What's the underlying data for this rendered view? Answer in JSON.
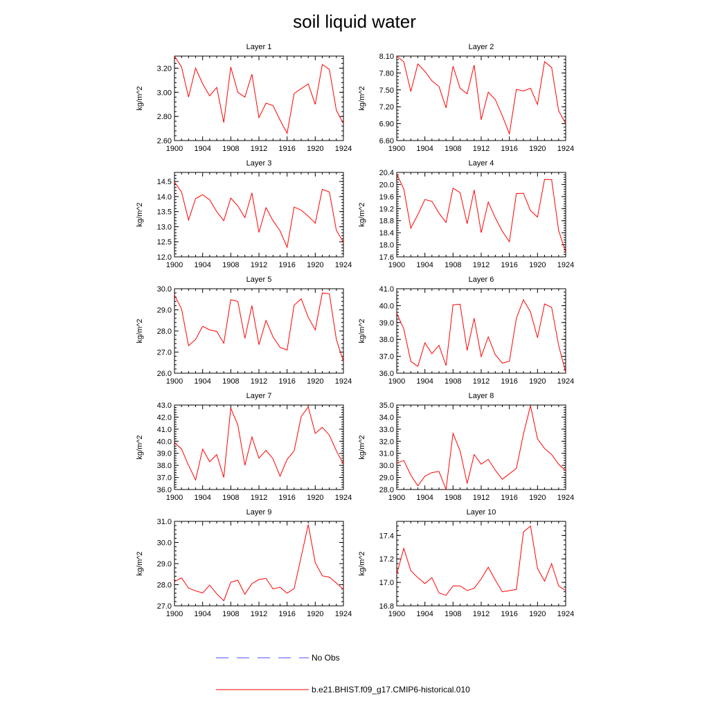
{
  "title": "soil liquid water",
  "colors": {
    "model": "#ff0000",
    "obs": "#4a4aff",
    "axis": "#000000"
  },
  "legend": {
    "entries": [
      {
        "label": "No Obs",
        "style": "dashed",
        "color": "#4a4aff"
      },
      {
        "label": "b.e21.BHIST.f09_g17.CMIP6-historical.010",
        "style": "solid",
        "color": "#ff0000"
      }
    ]
  },
  "chart_data": [
    {
      "type": "line",
      "title": "Layer 1",
      "ylabel": "kg/m^2",
      "ylim": [
        2.6,
        3.3
      ],
      "yticks": [
        "2.60",
        "2.80",
        "3.00",
        "3.20"
      ],
      "xticks": [
        "1900",
        "1904",
        "1908",
        "1912",
        "1916",
        "1920",
        "1924"
      ],
      "xlim": [
        1900,
        1924
      ],
      "series": [
        {
          "x": [
            1900,
            1901,
            1902,
            1903,
            1904,
            1905,
            1906,
            1907,
            1908,
            1909,
            1910,
            1911,
            1912,
            1913,
            1914,
            1915,
            1916,
            1917,
            1918,
            1919,
            1920,
            1921,
            1922,
            1923,
            1924
          ],
          "values": [
            3.3,
            3.21,
            2.96,
            3.2,
            3.07,
            2.97,
            3.04,
            2.75,
            3.21,
            3.0,
            2.96,
            3.15,
            2.79,
            2.91,
            2.89,
            2.77,
            2.66,
            2.99,
            3.03,
            3.07,
            2.9,
            3.23,
            3.19,
            2.85,
            2.74
          ]
        }
      ]
    },
    {
      "type": "line",
      "title": "Layer 2",
      "ylabel": "kg/m^2",
      "ylim": [
        6.6,
        8.1
      ],
      "yticks": [
        "6.60",
        "6.90",
        "7.20",
        "7.50",
        "7.80",
        "8.10"
      ],
      "xticks": [
        "1900",
        "1904",
        "1908",
        "1912",
        "1916",
        "1920",
        "1924"
      ],
      "xlim": [
        1900,
        1924
      ],
      "series": [
        {
          "x": [
            1900,
            1901,
            1902,
            1903,
            1904,
            1905,
            1906,
            1907,
            1908,
            1909,
            1910,
            1911,
            1912,
            1913,
            1914,
            1915,
            1916,
            1917,
            1918,
            1919,
            1920,
            1921,
            1922,
            1923,
            1924
          ],
          "values": [
            8.1,
            8.0,
            7.47,
            7.96,
            7.83,
            7.66,
            7.56,
            7.18,
            7.92,
            7.53,
            7.43,
            7.94,
            6.97,
            7.46,
            7.33,
            7.04,
            6.72,
            7.51,
            7.48,
            7.53,
            7.24,
            8.0,
            7.9,
            7.13,
            6.9
          ]
        }
      ]
    },
    {
      "type": "line",
      "title": "Layer 3",
      "ylabel": "kg/m^2",
      "ylim": [
        12.0,
        14.8
      ],
      "yticks": [
        "12.0",
        "12.5",
        "13.0",
        "13.5",
        "14.0",
        "14.5"
      ],
      "xticks": [
        "1900",
        "1904",
        "1908",
        "1912",
        "1916",
        "1920",
        "1924"
      ],
      "xlim": [
        1900,
        1924
      ],
      "series": [
        {
          "x": [
            1900,
            1901,
            1902,
            1903,
            1904,
            1905,
            1906,
            1907,
            1908,
            1909,
            1910,
            1911,
            1912,
            1913,
            1914,
            1915,
            1916,
            1917,
            1918,
            1919,
            1920,
            1921,
            1922,
            1923,
            1924
          ],
          "values": [
            14.48,
            14.15,
            13.22,
            13.93,
            14.06,
            13.89,
            13.5,
            13.2,
            13.95,
            13.69,
            13.3,
            14.12,
            12.81,
            13.63,
            13.2,
            12.86,
            12.32,
            13.65,
            13.55,
            13.35,
            13.12,
            14.24,
            14.15,
            12.88,
            12.48
          ]
        }
      ]
    },
    {
      "type": "line",
      "title": "Layer 4",
      "ylabel": "kg/m^2",
      "ylim": [
        17.6,
        20.4
      ],
      "yticks": [
        "17.6",
        "18.0",
        "18.4",
        "18.8",
        "19.2",
        "19.6",
        "20.0",
        "20.4"
      ],
      "xticks": [
        "1900",
        "1904",
        "1908",
        "1912",
        "1916",
        "1920",
        "1924"
      ],
      "xlim": [
        1900,
        1924
      ],
      "series": [
        {
          "x": [
            1900,
            1901,
            1902,
            1903,
            1904,
            1905,
            1906,
            1907,
            1908,
            1909,
            1910,
            1911,
            1912,
            1913,
            1914,
            1915,
            1916,
            1917,
            1918,
            1919,
            1920,
            1921,
            1922,
            1923,
            1924
          ],
          "values": [
            20.35,
            19.85,
            18.55,
            19.0,
            19.5,
            19.44,
            19.05,
            18.74,
            19.88,
            19.73,
            18.7,
            19.82,
            18.4,
            19.42,
            18.9,
            18.45,
            18.1,
            19.7,
            19.71,
            19.13,
            18.92,
            20.17,
            20.16,
            18.48,
            17.75
          ]
        }
      ]
    },
    {
      "type": "line",
      "title": "Layer 5",
      "ylabel": "kg/m^2",
      "ylim": [
        26.0,
        30.0
      ],
      "yticks": [
        "26.0",
        "27.0",
        "28.0",
        "29.0",
        "30.0"
      ],
      "xticks": [
        "1900",
        "1904",
        "1908",
        "1912",
        "1916",
        "1920",
        "1924"
      ],
      "xlim": [
        1900,
        1924
      ],
      "series": [
        {
          "x": [
            1900,
            1901,
            1902,
            1903,
            1904,
            1905,
            1906,
            1907,
            1908,
            1909,
            1910,
            1911,
            1912,
            1913,
            1914,
            1915,
            1916,
            1917,
            1918,
            1919,
            1920,
            1921,
            1922,
            1923,
            1924
          ],
          "values": [
            29.7,
            29.05,
            27.3,
            27.6,
            28.22,
            28.05,
            27.98,
            27.42,
            29.48,
            29.4,
            27.65,
            29.2,
            27.35,
            28.5,
            27.72,
            27.22,
            27.1,
            29.22,
            29.52,
            28.65,
            28.05,
            29.8,
            29.76,
            27.6,
            26.55
          ]
        }
      ]
    },
    {
      "type": "line",
      "title": "Layer 6",
      "ylabel": "kg/m^2",
      "ylim": [
        36.0,
        41.0
      ],
      "yticks": [
        "36.0",
        "37.0",
        "38.0",
        "39.0",
        "40.0",
        "41.0"
      ],
      "xticks": [
        "1900",
        "1904",
        "1908",
        "1912",
        "1916",
        "1920",
        "1924"
      ],
      "xlim": [
        1900,
        1924
      ],
      "series": [
        {
          "x": [
            1900,
            1901,
            1902,
            1903,
            1904,
            1905,
            1906,
            1907,
            1908,
            1909,
            1910,
            1911,
            1912,
            1913,
            1914,
            1915,
            1916,
            1917,
            1918,
            1919,
            1920,
            1921,
            1922,
            1923,
            1924
          ],
          "values": [
            39.55,
            38.62,
            36.7,
            36.4,
            37.8,
            37.15,
            37.65,
            36.45,
            40.05,
            40.08,
            37.35,
            39.25,
            36.98,
            38.15,
            37.1,
            36.6,
            36.7,
            39.25,
            40.35,
            39.62,
            38.1,
            40.1,
            39.9,
            37.65,
            36.05
          ]
        }
      ]
    },
    {
      "type": "line",
      "title": "Layer 7",
      "ylabel": "kg/m^2",
      "ylim": [
        36.0,
        43.0
      ],
      "yticks": [
        "36.0",
        "37.0",
        "38.0",
        "39.0",
        "40.0",
        "41.0",
        "42.0",
        "43.0"
      ],
      "xticks": [
        "1900",
        "1904",
        "1908",
        "1912",
        "1916",
        "1920",
        "1924"
      ],
      "xlim": [
        1900,
        1924
      ],
      "series": [
        {
          "x": [
            1900,
            1901,
            1902,
            1903,
            1904,
            1905,
            1906,
            1907,
            1908,
            1909,
            1910,
            1911,
            1912,
            1913,
            1914,
            1915,
            1916,
            1917,
            1918,
            1919,
            1920,
            1921,
            1922,
            1923,
            1924
          ],
          "values": [
            39.9,
            39.35,
            38.0,
            36.8,
            39.35,
            38.3,
            38.9,
            37.0,
            42.75,
            41.35,
            38.0,
            40.35,
            38.6,
            39.25,
            38.55,
            37.1,
            38.5,
            39.2,
            42.05,
            42.85,
            40.65,
            41.15,
            40.5,
            39.2,
            38.1
          ]
        }
      ]
    },
    {
      "type": "line",
      "title": "Layer 8",
      "ylabel": "kg/m^2",
      "ylim": [
        28.0,
        35.0
      ],
      "yticks": [
        "28.0",
        "29.0",
        "30.0",
        "31.0",
        "32.0",
        "33.0",
        "34.0",
        "35.0"
      ],
      "xticks": [
        "1900",
        "1904",
        "1908",
        "1912",
        "1916",
        "1920",
        "1924"
      ],
      "xlim": [
        1900,
        1924
      ],
      "series": [
        {
          "x": [
            1900,
            1901,
            1902,
            1903,
            1904,
            1905,
            1906,
            1907,
            1908,
            1909,
            1910,
            1911,
            1912,
            1913,
            1914,
            1915,
            1916,
            1917,
            1918,
            1919,
            1920,
            1921,
            1922,
            1923,
            1924
          ],
          "values": [
            30.2,
            30.4,
            29.2,
            28.3,
            29.1,
            29.4,
            29.5,
            28.0,
            32.65,
            31.2,
            28.5,
            30.9,
            30.1,
            30.5,
            29.6,
            28.85,
            29.3,
            29.75,
            32.6,
            34.95,
            32.2,
            31.4,
            30.9,
            30.1,
            29.55
          ]
        }
      ]
    },
    {
      "type": "line",
      "title": "Layer 9",
      "ylabel": "kg/m^2",
      "ylim": [
        27.0,
        31.0
      ],
      "yticks": [
        "27.0",
        "28.0",
        "29.0",
        "30.0",
        "31.0"
      ],
      "xticks": [
        "1900",
        "1904",
        "1908",
        "1912",
        "1916",
        "1920",
        "1924"
      ],
      "xlim": [
        1900,
        1924
      ],
      "series": [
        {
          "x": [
            1900,
            1901,
            1902,
            1903,
            1904,
            1905,
            1906,
            1907,
            1908,
            1909,
            1910,
            1911,
            1912,
            1913,
            1914,
            1915,
            1916,
            1917,
            1918,
            1919,
            1920,
            1921,
            1922,
            1923,
            1924
          ],
          "values": [
            28.15,
            28.32,
            27.84,
            27.71,
            27.61,
            27.98,
            27.57,
            27.24,
            28.12,
            28.21,
            27.55,
            28.05,
            28.25,
            28.3,
            27.8,
            27.88,
            27.6,
            27.82,
            29.32,
            30.85,
            29.05,
            28.42,
            28.36,
            28.08,
            27.78
          ]
        }
      ]
    },
    {
      "type": "line",
      "title": "Layer 10",
      "ylabel": "kg/m^2",
      "ylim": [
        16.8,
        17.52
      ],
      "yticks": [
        "16.8",
        "17.0",
        "17.2",
        "17.4"
      ],
      "xticks": [
        "1900",
        "1904",
        "1908",
        "1912",
        "1916",
        "1920",
        "1924"
      ],
      "xlim": [
        1900,
        1924
      ],
      "series": [
        {
          "x": [
            1900,
            1901,
            1902,
            1903,
            1904,
            1905,
            1906,
            1907,
            1908,
            1909,
            1910,
            1911,
            1912,
            1913,
            1914,
            1915,
            1916,
            1917,
            1918,
            1919,
            1920,
            1921,
            1922,
            1923,
            1924
          ],
          "values": [
            17.07,
            17.29,
            17.1,
            17.04,
            16.99,
            17.04,
            16.91,
            16.89,
            16.97,
            16.97,
            16.93,
            16.95,
            17.03,
            17.13,
            17.02,
            16.92,
            16.93,
            16.94,
            17.43,
            17.48,
            17.12,
            17.01,
            17.16,
            16.97,
            16.93
          ]
        }
      ]
    }
  ]
}
